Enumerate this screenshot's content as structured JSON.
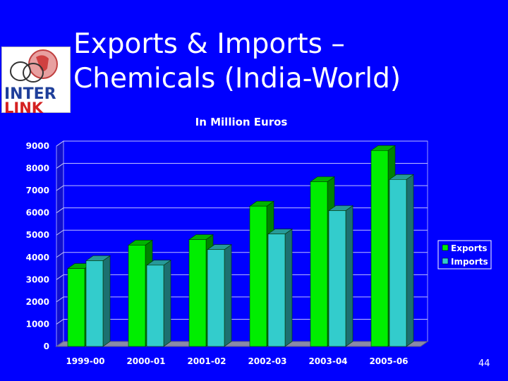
{
  "slide": {
    "title_line1": "Exports & Imports –",
    "title_line2": "Chemicals (India-World)",
    "logo_line1": "INTER",
    "logo_line2": "LINK",
    "slide_number": "44"
  },
  "chart_data": {
    "type": "bar",
    "title": "In Million Euros",
    "categories": [
      "1999-00",
      "2000-01",
      "2001-02",
      "2002-03",
      "2003-04",
      "2005-06"
    ],
    "series": [
      {
        "name": "Exports",
        "values": [
          3500,
          4550,
          4800,
          6300,
          7400,
          8800
        ],
        "color": "#00ee00"
      },
      {
        "name": "Imports",
        "values": [
          3850,
          3650,
          4350,
          5050,
          6100,
          7500
        ],
        "color": "#33cccc"
      }
    ],
    "yticks": [
      "0",
      "1000",
      "2000",
      "3000",
      "4000",
      "5000",
      "6000",
      "7000",
      "8000",
      "9000"
    ],
    "ylim": [
      0,
      9000
    ],
    "grid": true,
    "legend_position": "right",
    "style": "3d-bar"
  }
}
